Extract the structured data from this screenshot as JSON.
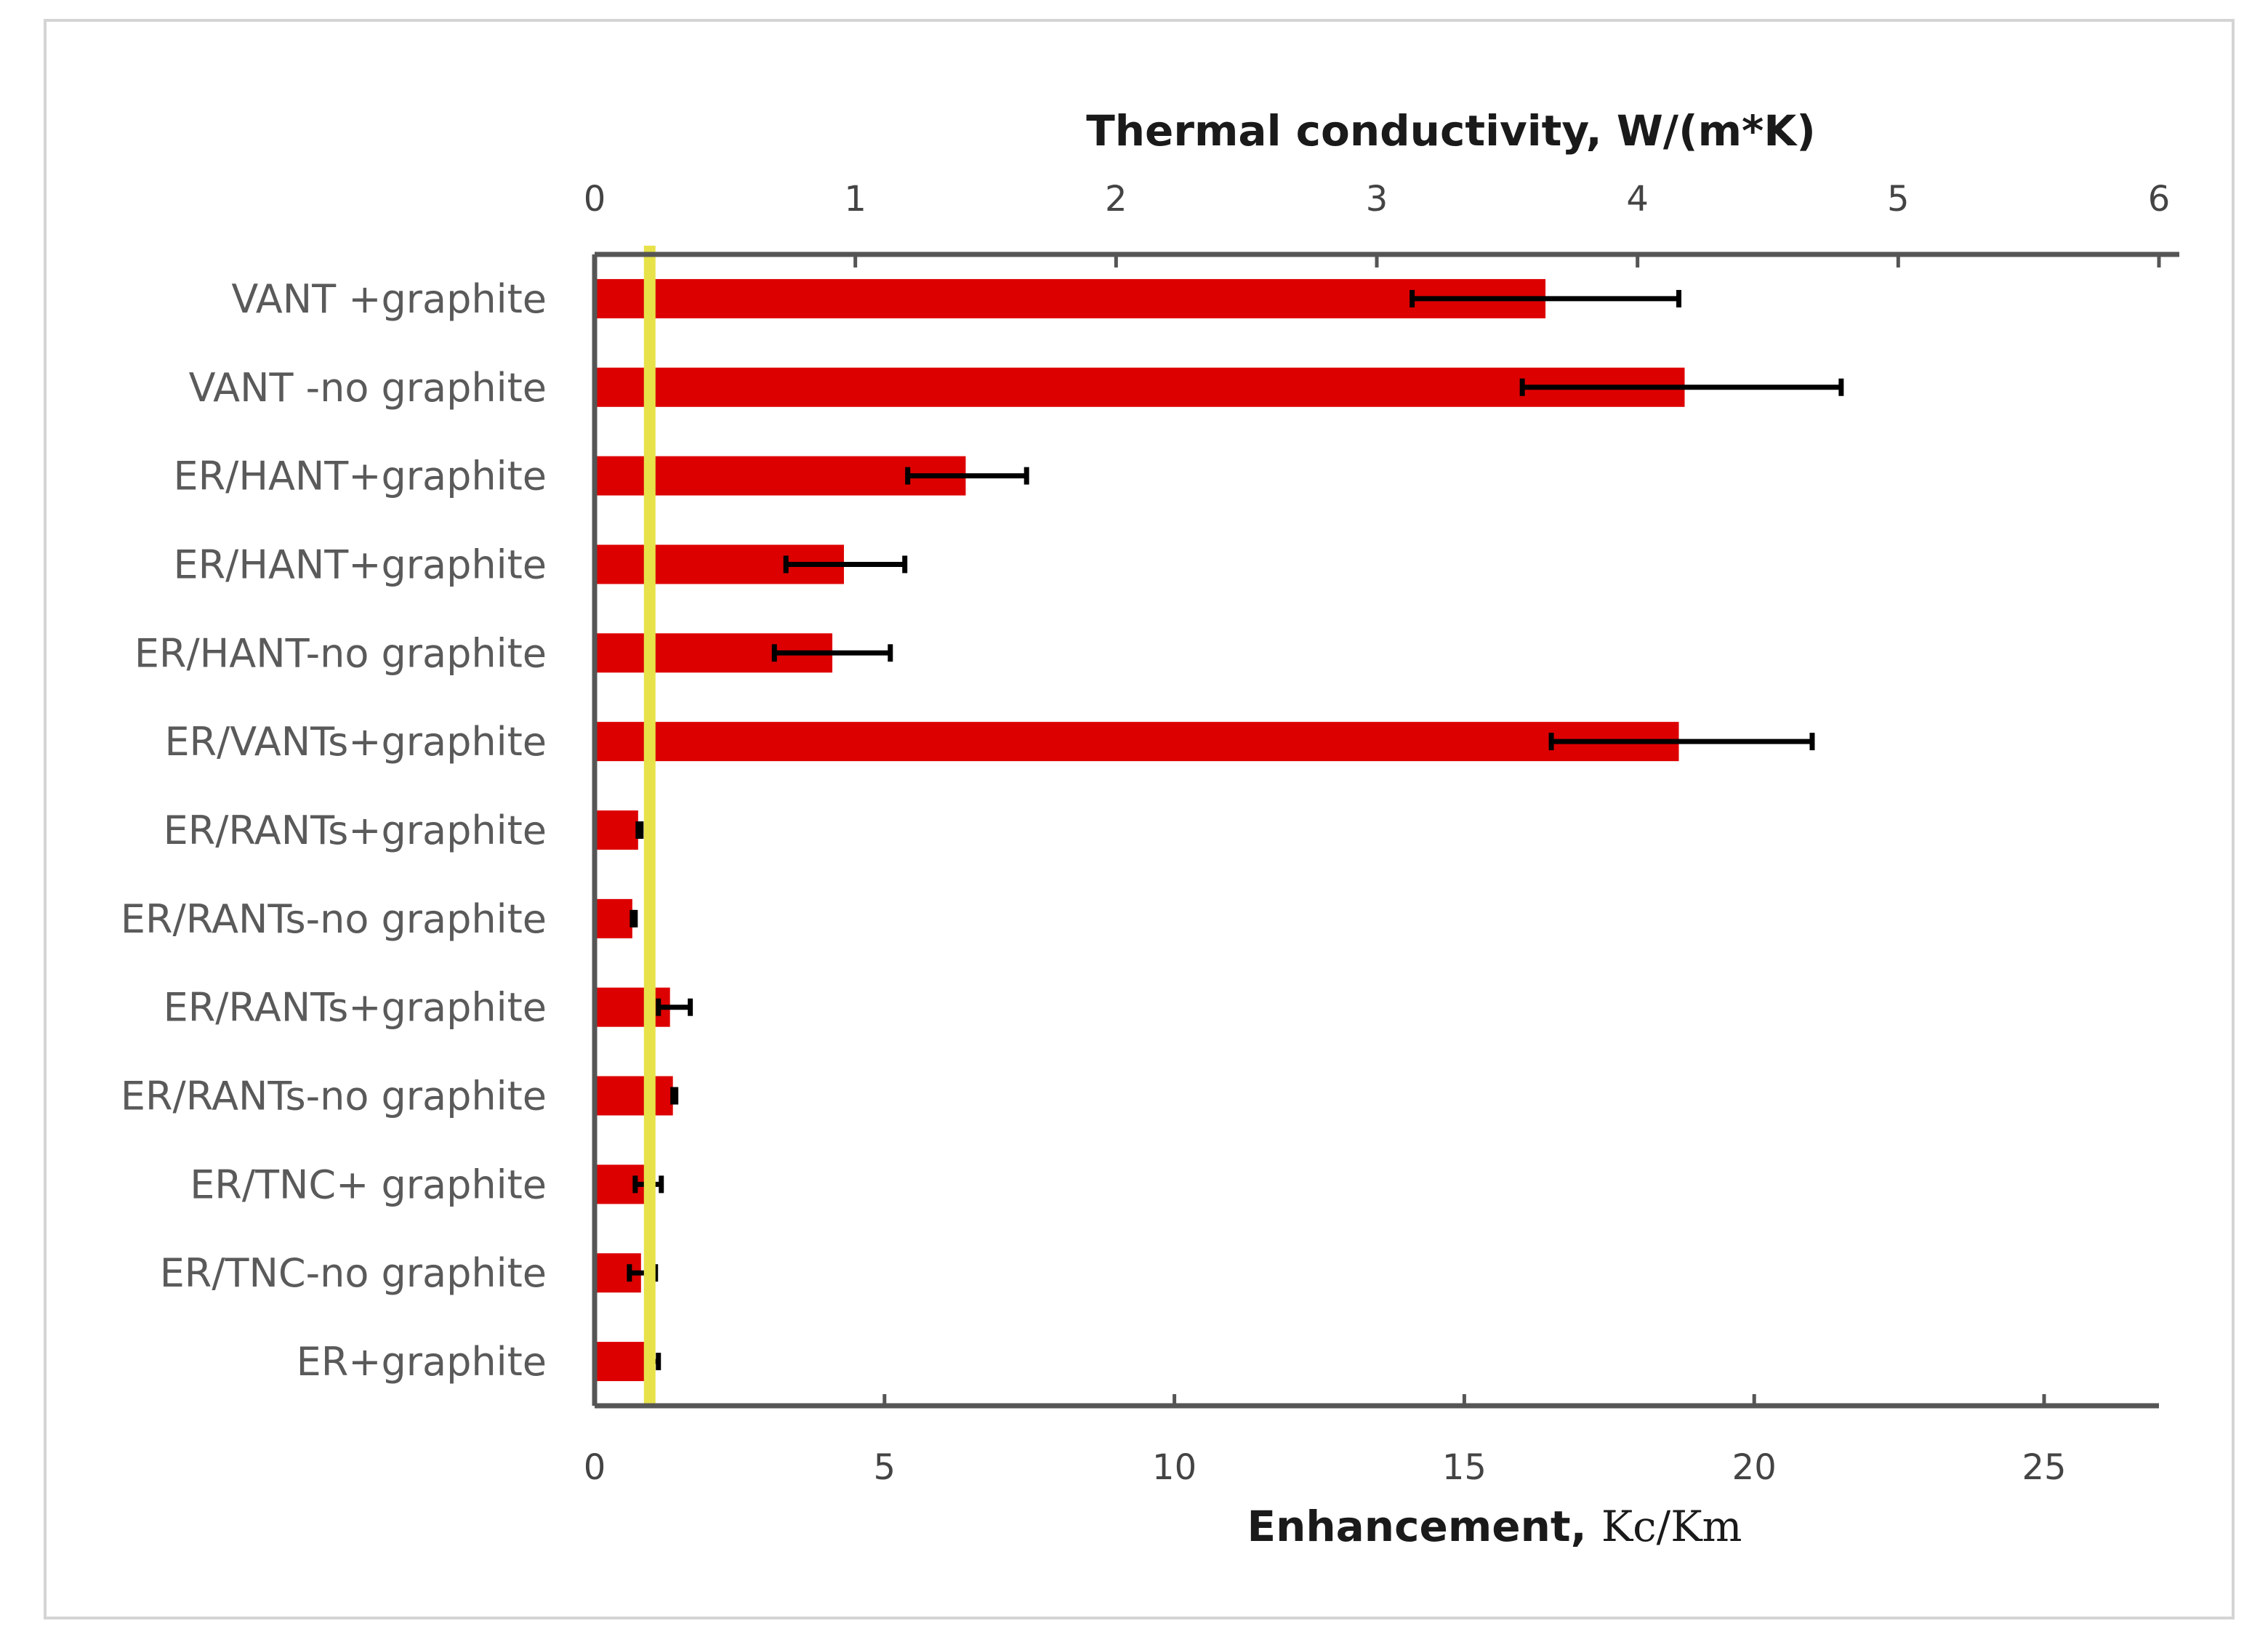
{
  "chart_data": {
    "type": "bar",
    "orientation": "horizontal",
    "categories": [
      "VANT +graphite",
      "VANT -no graphite",
      "ER/HANT+graphite",
      "ER/HANT+graphite",
      "ER/HANT-no graphite",
      "ER/VANTs+graphite",
      "ER/RANTs+graphite",
      "ER/RANTs-no graphite",
      "ER/RANTs+graphite",
      "ER/RANTs-no graphite",
      "ER/TNC+ graphite",
      "ER/TNC-no graphite",
      "ER+graphite"
    ],
    "values": [
      16.4,
      18.8,
      6.4,
      4.3,
      4.1,
      18.7,
      0.75,
      0.65,
      1.3,
      1.35,
      0.9,
      0.8,
      0.9
    ],
    "error_low": [
      2.3,
      2.8,
      1.0,
      1.0,
      1.0,
      2.2,
      0.0,
      0.0,
      0.2,
      0.0,
      0.2,
      0.2,
      0.0
    ],
    "error_high": [
      2.3,
      2.7,
      1.05,
      1.05,
      1.0,
      2.3,
      0.05,
      0.05,
      0.35,
      0.05,
      0.25,
      0.25,
      0.2
    ],
    "bar_color": "#dd0000",
    "reference_line": {
      "x": 0.95,
      "color": "#e8e24a"
    },
    "x_axis_bottom": {
      "title_prefix": "Enhancement, ",
      "title_symbol": "Κc/Κm",
      "range": [
        0,
        27
      ],
      "ticks": [
        0,
        5,
        10,
        15,
        20,
        25
      ]
    },
    "x_axis_top": {
      "title": "Thermal conductivity, W/(m*K)",
      "range": [
        0,
        6
      ],
      "ticks": [
        0,
        1,
        2,
        3,
        4,
        5,
        6
      ]
    },
    "grid": false,
    "legend": "none"
  }
}
